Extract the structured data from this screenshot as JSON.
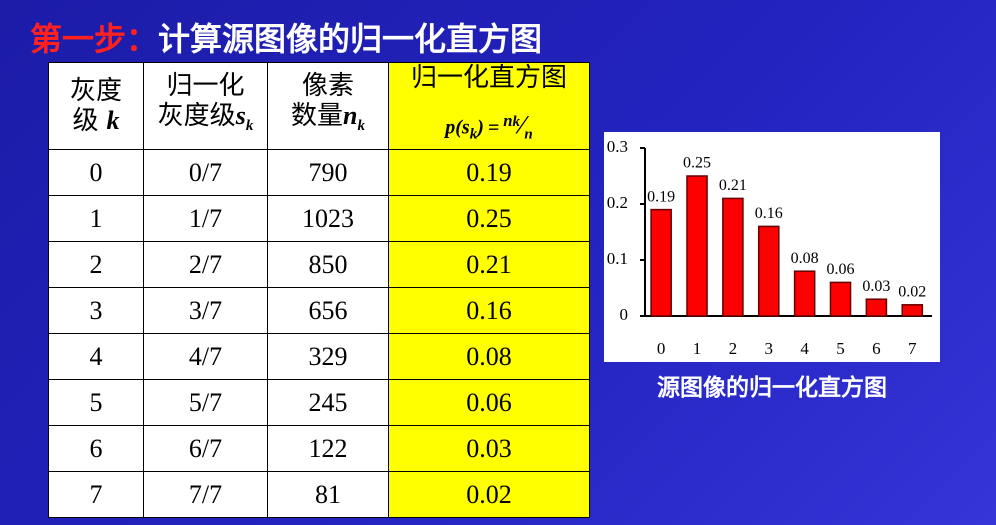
{
  "title": {
    "step": "第一步：",
    "text": "计算源图像的归一化直方图"
  },
  "table": {
    "headers": [
      {
        "line1": "灰度",
        "line2": "级",
        "var": "k"
      },
      {
        "line1": "归一化",
        "line2": "灰度级",
        "var": "s",
        "sub": "k"
      },
      {
        "line1": "像素",
        "line2": "数量",
        "var": "n",
        "sub": "k"
      },
      {
        "line1": "归一化直方图",
        "formula": {
          "lhs": "p(s",
          "lhs_sub": "k",
          "lhs_end": ")",
          "eq": "=",
          "num": "n",
          "num_sub": "k",
          "den": "n"
        }
      }
    ],
    "rows": [
      [
        "0",
        "0/7",
        "790",
        "0.19"
      ],
      [
        "1",
        "1/7",
        "1023",
        "0.25"
      ],
      [
        "2",
        "2/7",
        "850",
        "0.21"
      ],
      [
        "3",
        "3/7",
        "656",
        "0.16"
      ],
      [
        "4",
        "4/7",
        "329",
        "0.08"
      ],
      [
        "5",
        "5/7",
        "245",
        "0.06"
      ],
      [
        "6",
        "6/7",
        "122",
        "0.03"
      ],
      [
        "7",
        "7/7",
        "81",
        "0.02"
      ]
    ]
  },
  "chart_data": {
    "type": "bar",
    "caption": "源图像的归一化直方图",
    "categories": [
      "0",
      "1",
      "2",
      "3",
      "4",
      "5",
      "6",
      "7"
    ],
    "values": [
      0.19,
      0.25,
      0.21,
      0.16,
      0.08,
      0.06,
      0.03,
      0.02
    ],
    "color": "#ff0000",
    "ylim": [
      0,
      0.3
    ],
    "yticks": [
      0,
      0.1,
      0.2,
      0.3
    ],
    "grid": false
  }
}
